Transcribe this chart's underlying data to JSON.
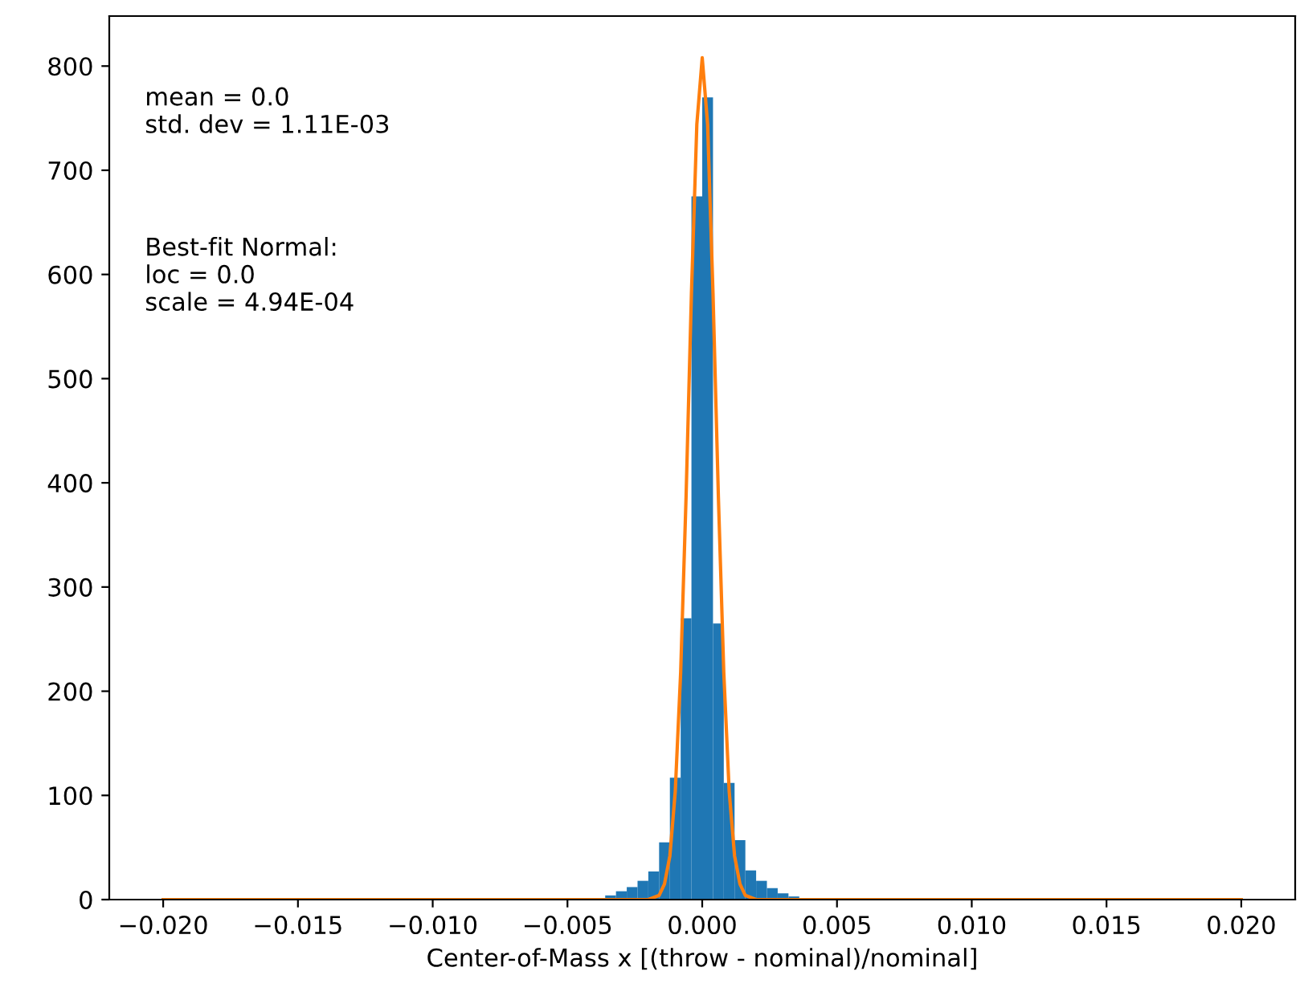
{
  "chart_data": {
    "type": "histogram",
    "xlabel": "Center-of-Mass x [(throw - nominal)/nominal]",
    "bins": [
      -0.02,
      -0.0196,
      -0.0192,
      -0.0188,
      -0.0184,
      -0.018,
      -0.0176,
      -0.0172,
      -0.0168,
      -0.0164,
      -0.016,
      -0.0156,
      -0.0152,
      -0.0148,
      -0.0144,
      -0.014,
      -0.0136,
      -0.0132,
      -0.0128,
      -0.0124,
      -0.012,
      -0.0116,
      -0.0112,
      -0.0108,
      -0.0104,
      -0.01,
      -0.0096,
      -0.0092,
      -0.0088,
      -0.0084,
      -0.008,
      -0.0076,
      -0.0072,
      -0.0068,
      -0.0064,
      -0.006,
      -0.0056,
      -0.0052,
      -0.0048,
      -0.0044,
      -0.004,
      -0.0036,
      -0.0032,
      -0.0028,
      -0.0024,
      -0.002,
      -0.0016,
      -0.0012,
      -0.0008,
      -0.0004,
      0,
      0.0004,
      0.0008,
      0.0012,
      0.0016,
      0.002,
      0.0024,
      0.0028,
      0.0032,
      0.0036,
      0.004,
      0.0044,
      0.0048,
      0.0052,
      0.0056,
      0.006,
      0.0064,
      0.0068,
      0.0072,
      0.0076,
      0.008,
      0.0084,
      0.0088,
      0.0092,
      0.0096,
      0.01,
      0.0104,
      0.0108,
      0.0112,
      0.0116,
      0.012,
      0.0124,
      0.0128,
      0.0132,
      0.0136,
      0.014,
      0.0144,
      0.0148,
      0.0152,
      0.0156,
      0.016,
      0.0164,
      0.0168,
      0.0172,
      0.0176,
      0.018,
      0.0184,
      0.0188,
      0.0192,
      0.0196,
      0.02
    ],
    "values": [
      0,
      0,
      0,
      0,
      0,
      0,
      0,
      0,
      0,
      0,
      0,
      0,
      0,
      0,
      0,
      0,
      0,
      0,
      0,
      0,
      0,
      0,
      0,
      0,
      0,
      0,
      0,
      0,
      0,
      0,
      0,
      0,
      0,
      0,
      0,
      0,
      0,
      0,
      0,
      0,
      null,
      4,
      8,
      12,
      18,
      27,
      55,
      117,
      270,
      675,
      770,
      265,
      112,
      57,
      28,
      18,
      11,
      6,
      3,
      0,
      0,
      0,
      0,
      0,
      0,
      0,
      0,
      0,
      0,
      0,
      0,
      0,
      0,
      0,
      0,
      0,
      0,
      0,
      0,
      0,
      0,
      0,
      0,
      0,
      0,
      0,
      0,
      0,
      0,
      0,
      0,
      0,
      0,
      0,
      0,
      0,
      0,
      0,
      0,
      0
    ],
    "color": "#1f77b4",
    "series": [
      {
        "type": "line",
        "color": "#ff7f0e",
        "x": [
          -0.02,
          -0.002,
          -0.0016,
          -0.0014,
          -0.0012,
          -0.001,
          -0.0008,
          -0.0006,
          -0.0004,
          -0.0002,
          0,
          0.0002,
          0.0004,
          0.0006,
          0.0008,
          0.001,
          0.0012,
          0.0014,
          0.0016,
          0.002,
          0.02
        ],
        "values": [
          0,
          0,
          4,
          15,
          42,
          104,
          218,
          386,
          582,
          744,
          808,
          744,
          582,
          386,
          218,
          104,
          42,
          15,
          4,
          0,
          0
        ]
      }
    ],
    "xlim": [
      -0.022,
      0.022
    ],
    "ylim": [
      0,
      848
    ],
    "xticks": [
      {
        "value": -0.02,
        "label": "−0.020"
      },
      {
        "value": -0.015,
        "label": "−0.015"
      },
      {
        "value": -0.01,
        "label": "−0.010"
      },
      {
        "value": -0.005,
        "label": "−0.005"
      },
      {
        "value": 0,
        "label": "0.000"
      },
      {
        "value": 0.005,
        "label": "0.005"
      },
      {
        "value": 0.01,
        "label": "0.010"
      },
      {
        "value": 0.015,
        "label": "0.015"
      },
      {
        "value": 0.02,
        "label": "0.020"
      }
    ],
    "yticks": [
      0,
      100,
      200,
      300,
      400,
      500,
      600,
      700,
      800
    ],
    "annotations": [
      "mean = 0.0\nstd. dev = 1.11E-03",
      "Best-fit Normal:\nloc = 0.0\nscale = 4.94E-04"
    ]
  }
}
